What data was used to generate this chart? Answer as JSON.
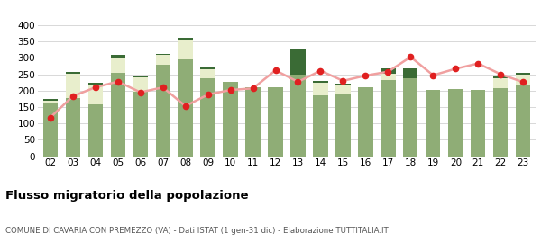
{
  "years": [
    "02",
    "03",
    "04",
    "05",
    "06",
    "07",
    "08",
    "09",
    "10",
    "11",
    "12",
    "13",
    "14",
    "15",
    "16",
    "17",
    "18",
    "19",
    "20",
    "21",
    "22",
    "23"
  ],
  "iscritti_comuni": [
    163,
    178,
    157,
    254,
    196,
    278,
    295,
    237,
    228,
    210,
    210,
    250,
    185,
    190,
    210,
    233,
    237,
    203,
    206,
    203,
    207,
    220
  ],
  "iscritti_estero": [
    5,
    75,
    60,
    45,
    44,
    30,
    58,
    28,
    0,
    0,
    0,
    0,
    40,
    28,
    0,
    20,
    0,
    0,
    0,
    0,
    32,
    30
  ],
  "iscritti_altri": [
    8,
    5,
    8,
    10,
    4,
    4,
    8,
    5,
    0,
    0,
    0,
    75,
    4,
    4,
    0,
    15,
    30,
    0,
    0,
    0,
    8,
    5
  ],
  "cancellati": [
    118,
    183,
    210,
    228,
    195,
    210,
    153,
    188,
    202,
    207,
    262,
    227,
    261,
    230,
    246,
    258,
    303,
    247,
    267,
    283,
    250,
    226
  ],
  "color_comuni": "#8fad76",
  "color_estero": "#e8eecc",
  "color_altri": "#3a6b35",
  "color_cancellati": "#e02020",
  "color_line": "#f0a0a0",
  "title": "Flusso migratorio della popolazione",
  "subtitle": "COMUNE DI CAVARIA CON PREMEZZO (VA) - Dati ISTAT (1 gen-31 dic) - Elaborazione TUTTITALIA.IT",
  "ylim": [
    0,
    400
  ],
  "yticks": [
    0,
    50,
    100,
    150,
    200,
    250,
    300,
    350,
    400
  ],
  "background_color": "#ffffff",
  "grid_color": "#d8d8d8"
}
